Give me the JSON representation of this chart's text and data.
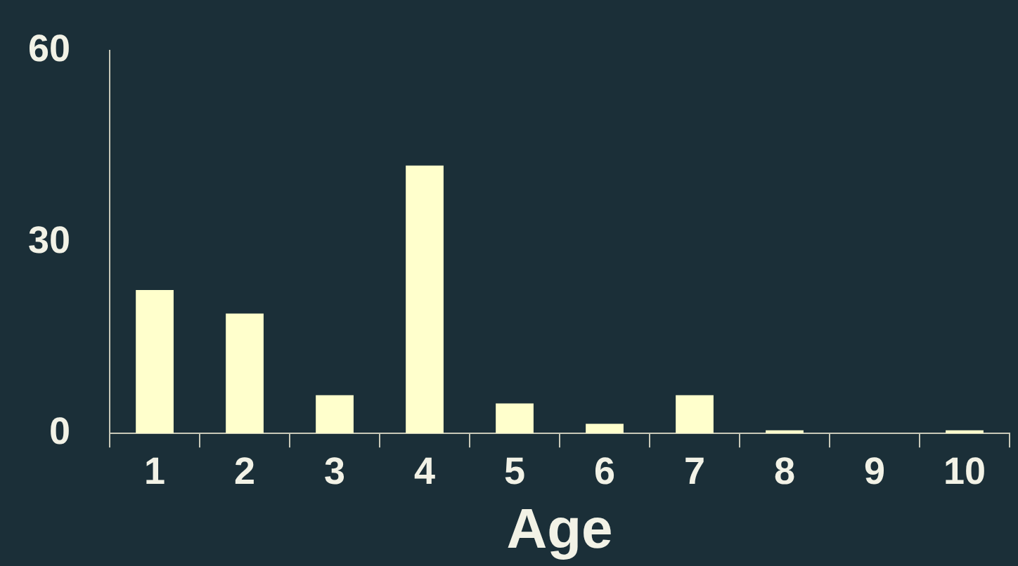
{
  "chart_data": {
    "type": "bar",
    "xlabel": "Age",
    "categories": [
      "1",
      "2",
      "3",
      "4",
      "5",
      "6",
      "7",
      "8",
      "9",
      "10"
    ],
    "values": [
      22.5,
      18.8,
      6,
      42,
      4.7,
      1.5,
      6,
      0.5,
      0,
      0.5
    ],
    "color": "#ffffcc",
    "ylim": [
      0,
      60
    ],
    "yticks": [
      0,
      30,
      60
    ],
    "grid": false,
    "legend": false
  }
}
